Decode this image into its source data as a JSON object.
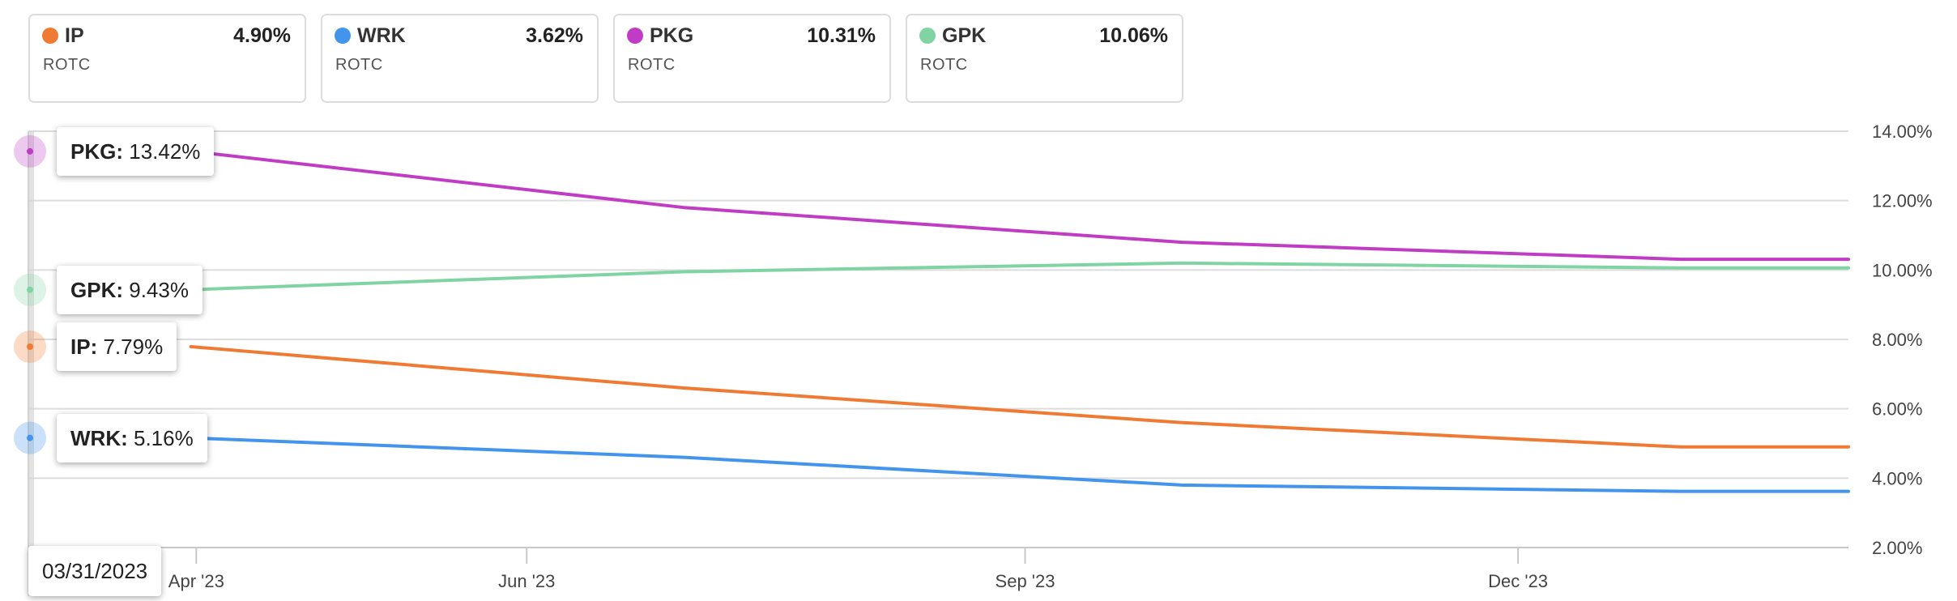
{
  "cards": [
    {
      "ticker": "IP",
      "value": "4.90%",
      "metric": "ROTC",
      "color": "#ef7a33"
    },
    {
      "ticker": "WRK",
      "value": "3.62%",
      "metric": "ROTC",
      "color": "#4394ec"
    },
    {
      "ticker": "PKG",
      "value": "10.31%",
      "metric": "ROTC",
      "color": "#c13cc4"
    },
    {
      "ticker": "GPK",
      "value": "10.06%",
      "metric": "ROTC",
      "color": "#80d4a3"
    }
  ],
  "tooltips": [
    {
      "name": "PKG:",
      "value": "13.42%"
    },
    {
      "name": "GPK:",
      "value": "9.43%"
    },
    {
      "name": "IP:",
      "value": "7.79%"
    },
    {
      "name": "WRK:",
      "value": "5.16%"
    }
  ],
  "hover_date": "03/31/2023",
  "chart_data": {
    "type": "line",
    "x": [
      "2023-03-31",
      "2023-06-30",
      "2023-09-30",
      "2023-12-31"
    ],
    "x_tick_labels": [
      "Apr '23",
      "Jun '23",
      "Sep '23",
      "Dec '23"
    ],
    "y_tick_labels": [
      "14.00%",
      "12.00%",
      "10.00%",
      "8.00%",
      "6.00%",
      "4.00%",
      "2.00%"
    ],
    "ylim": [
      2,
      14
    ],
    "y_axis_position": "right",
    "grid": true,
    "series": [
      {
        "name": "PKG",
        "color": "#c13cc4",
        "values": [
          13.42,
          11.8,
          10.8,
          10.31
        ]
      },
      {
        "name": "GPK",
        "color": "#80d4a3",
        "values": [
          9.43,
          9.95,
          10.2,
          10.06
        ]
      },
      {
        "name": "IP",
        "color": "#ef7a33",
        "values": [
          7.79,
          6.6,
          5.6,
          4.9
        ]
      },
      {
        "name": "WRK",
        "color": "#4394ec",
        "values": [
          5.16,
          4.6,
          3.8,
          3.62
        ]
      }
    ]
  }
}
